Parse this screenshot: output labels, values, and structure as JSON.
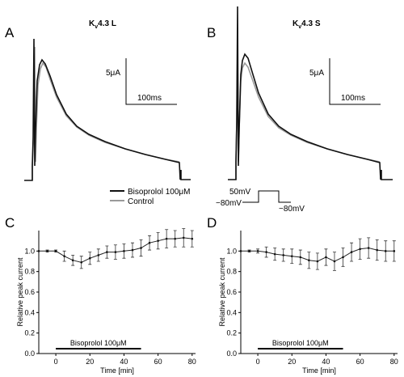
{
  "panels": {
    "A": {
      "letter": "A",
      "title_main": "K",
      "title_sub": "v",
      "title_rest": "4.3 L"
    },
    "B": {
      "letter": "B",
      "title_main": "K",
      "title_sub": "v",
      "title_rest": "4.3 S"
    },
    "C": {
      "letter": "C"
    },
    "D": {
      "letter": "D"
    }
  },
  "scalebar": {
    "current": "5μA",
    "time": "100ms"
  },
  "legend": {
    "treatment": "Bisoprolol 100μM",
    "control": "Control"
  },
  "protocol": {
    "step": "50mV",
    "hold_left": "−80mV",
    "hold_right": "−80mV"
  },
  "colors": {
    "treatment": "#111111",
    "control": "#9a9a9a",
    "axis": "#000000"
  },
  "chart_data": [
    {
      "panel": "C",
      "type": "line",
      "xlabel": "Time [min]",
      "ylabel": "Relative peak current",
      "xlim": [
        -10,
        82
      ],
      "ylim": [
        0,
        1.2
      ],
      "xticks": [
        0,
        20,
        40,
        60,
        80
      ],
      "yticks": [
        0.0,
        0.2,
        0.4,
        0.6,
        0.8,
        1.0
      ],
      "treatment_bar": {
        "label": "Bisoprolol 100μM",
        "start": 0,
        "end": 50
      },
      "series": [
        {
          "x": [
            -10,
            -5,
            0,
            5,
            10,
            15,
            20,
            25,
            30,
            35,
            40,
            45,
            50,
            55,
            60,
            65,
            70,
            75,
            80
          ],
          "y": [
            1.0,
            1.0,
            1.0,
            0.95,
            0.91,
            0.89,
            0.93,
            0.96,
            0.99,
            0.99,
            1.0,
            1.01,
            1.03,
            1.08,
            1.1,
            1.12,
            1.12,
            1.13,
            1.12
          ],
          "err": [
            0.0,
            0.01,
            0.01,
            0.05,
            0.05,
            0.06,
            0.06,
            0.06,
            0.06,
            0.07,
            0.07,
            0.07,
            0.08,
            0.07,
            0.08,
            0.09,
            0.08,
            0.09,
            0.08
          ]
        }
      ]
    },
    {
      "panel": "D",
      "type": "line",
      "xlabel": "Time [min]",
      "ylabel": "Relative peak current",
      "xlim": [
        -10,
        82
      ],
      "ylim": [
        0,
        1.2
      ],
      "xticks": [
        0,
        20,
        40,
        60,
        80
      ],
      "yticks": [
        0.0,
        0.2,
        0.4,
        0.6,
        0.8,
        1.0
      ],
      "treatment_bar": {
        "label": "Bisoprolol 100μM",
        "start": 0,
        "end": 50
      },
      "series": [
        {
          "x": [
            -10,
            -5,
            0,
            5,
            10,
            15,
            20,
            25,
            30,
            35,
            40,
            45,
            50,
            55,
            60,
            65,
            70,
            75,
            80
          ],
          "y": [
            1.0,
            1.0,
            1.0,
            0.99,
            0.97,
            0.96,
            0.95,
            0.94,
            0.91,
            0.9,
            0.94,
            0.9,
            0.94,
            0.99,
            1.02,
            1.03,
            1.01,
            1.0,
            1.0
          ],
          "err": [
            0.0,
            0.01,
            0.02,
            0.05,
            0.06,
            0.06,
            0.07,
            0.07,
            0.08,
            0.08,
            0.08,
            0.09,
            0.09,
            0.09,
            0.1,
            0.1,
            0.1,
            0.1,
            0.1
          ]
        }
      ]
    }
  ]
}
